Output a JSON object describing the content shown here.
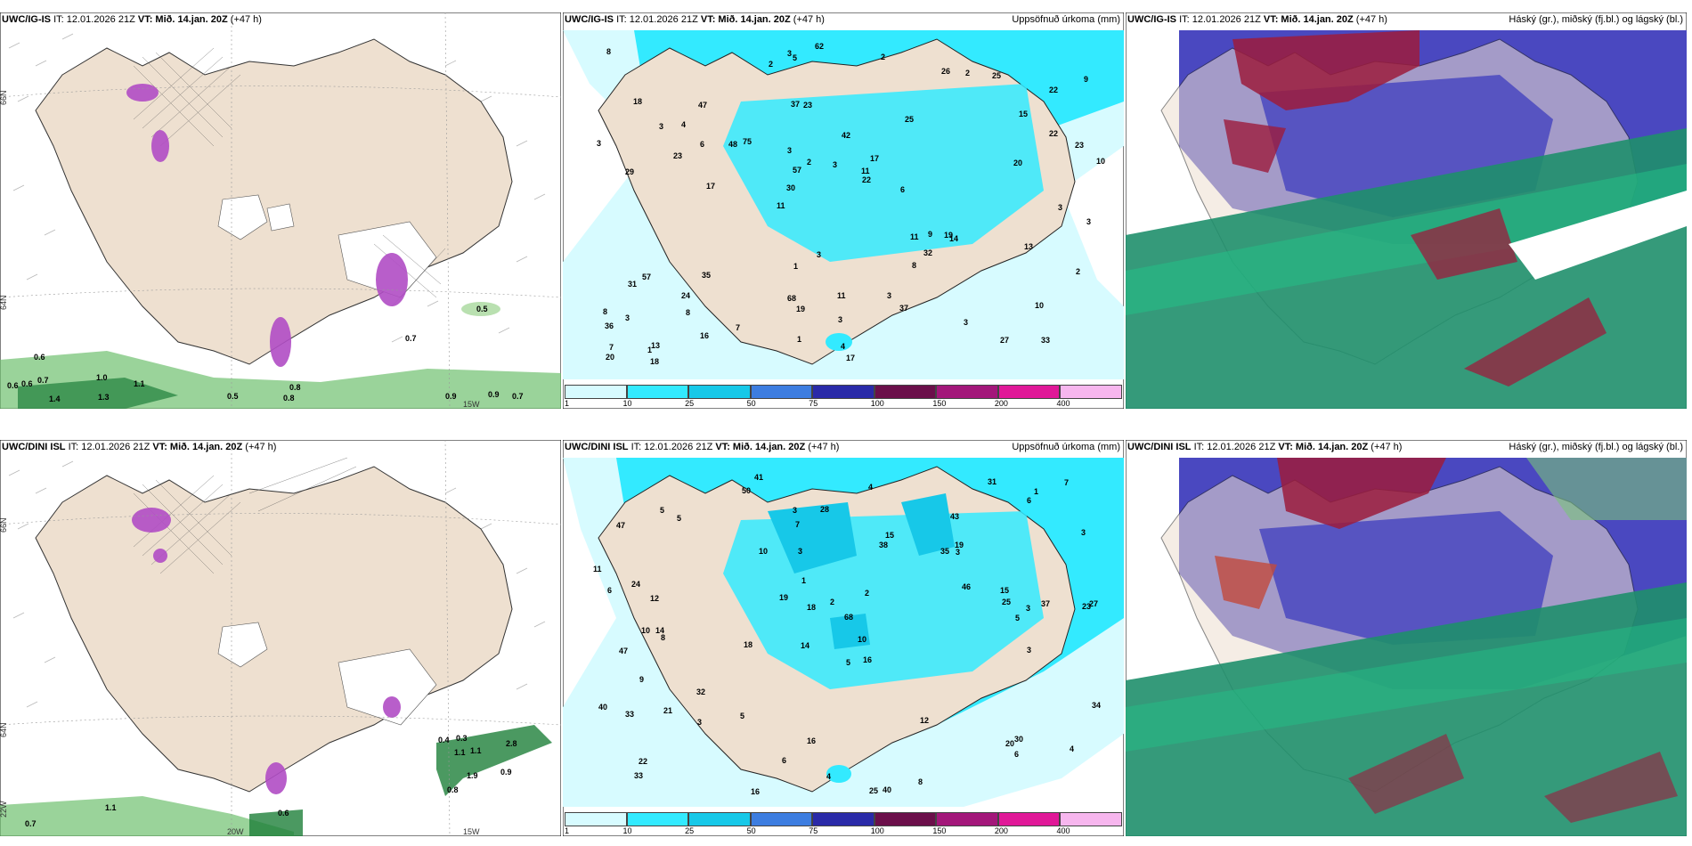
{
  "colors": {
    "land": "#eee0d0",
    "sea_precip_low": "#d7fbff",
    "precip_10": "#33eaff",
    "precip_25": "#17c8e8",
    "cloud_high": "#9c1c3c",
    "cloud_mid": "#4a48c0",
    "cloud_low": "#1f8f6c",
    "green_precip": "#6fc06f",
    "purple_precip": "#b04cc4"
  },
  "panels": {
    "top_left": {
      "model": "UWC/IG-IS",
      "it": "IT: 12.01.2026 21Z",
      "vt": "VT: Mið. 14.jan. 20Z",
      "lead": "(+47 h)",
      "values": [
        "0.6",
        "0.6",
        "0.6",
        "0.7",
        "1.0",
        "1.1",
        "1.4",
        "1.3",
        "0.5",
        "0.8",
        "0.8",
        "0.9",
        "0.9",
        "0.7",
        "0.7",
        "0.5"
      ],
      "axis": [
        "66N",
        "64N",
        "15W"
      ]
    },
    "top_mid": {
      "model": "UWC/IG-IS",
      "it": "IT: 12.01.2026 21Z",
      "vt": "VT: Mið. 14.jan. 20Z",
      "lead": "(+47 h)",
      "field": "Uppsöfnuð úrkoma (mm)",
      "values": [
        "33",
        "29",
        "22",
        "11",
        "25",
        "13",
        "37",
        "42",
        "57",
        "75",
        "36",
        "8",
        "23",
        "17",
        "14",
        "18",
        "5",
        "10",
        "11",
        "22",
        "30",
        "68",
        "57",
        "47",
        "26",
        "35",
        "27",
        "10",
        "19",
        "17",
        "48",
        "23",
        "8",
        "16",
        "23",
        "11",
        "7",
        "19",
        "22",
        "31",
        "15",
        "9",
        "32",
        "37",
        "24",
        "18",
        "20",
        "11",
        "25",
        "62",
        "17",
        "3",
        "4",
        "2",
        "1",
        "2",
        "2",
        "2",
        "2",
        "1",
        "7",
        "9",
        "6",
        "8",
        "8",
        "3",
        "3",
        "3",
        "3",
        "3",
        "3",
        "6",
        "13",
        "1",
        "20",
        "3",
        "3",
        "4",
        "3",
        "3",
        "3"
      ]
    },
    "top_right": {
      "model": "UWC/IG-IS",
      "it": "IT: 12.01.2026 21Z",
      "vt": "VT: Mið. 14.jan. 20Z",
      "lead": "(+47 h)",
      "field": "Háský (gr.), miðský (fj.bl.) og lágský (bl.)"
    },
    "bottom_left": {
      "model": "UWC/DINI ISL",
      "it": "IT: 12.01.2026 21Z",
      "vt": "VT: Mið. 14.jan. 20Z",
      "lead": "(+47 h)",
      "values": [
        "0.4",
        "0.3",
        "1.1",
        "1.1",
        "2.8",
        "1.9",
        "0.9",
        "0.8",
        "1.1",
        "0.7",
        "0.6"
      ],
      "axis": [
        "66N",
        "64N",
        "20W",
        "15W",
        "22W"
      ]
    },
    "bottom_mid": {
      "model": "UWC/DINI ISL",
      "it": "IT: 12.01.2026 21Z",
      "vt": "VT: Mið. 14.jan. 20Z",
      "lead": "(+47 h)",
      "field": "Uppsöfnuð úrkoma (mm)",
      "values": [
        "41",
        "43",
        "23",
        "14",
        "16",
        "14",
        "47",
        "35",
        "47",
        "38",
        "68",
        "33",
        "50",
        "18",
        "25",
        "40",
        "16",
        "31",
        "46",
        "32",
        "12",
        "10",
        "27",
        "37",
        "40",
        "24",
        "18",
        "25",
        "30",
        "33",
        "20",
        "15",
        "21",
        "19",
        "12",
        "34",
        "15",
        "6",
        "7",
        "28",
        "22",
        "16",
        "8",
        "5",
        "4",
        "3",
        "6",
        "19",
        "11",
        "10",
        "7",
        "5",
        "2",
        "6",
        "4",
        "3",
        "1",
        "2",
        "1",
        "3",
        "4",
        "3",
        "5",
        "5",
        "5",
        "6",
        "3",
        "8",
        "10",
        "3",
        "9",
        "3"
      ]
    },
    "bottom_right": {
      "model": "UWC/DINI ISL",
      "it": "IT: 12.01.2026 21Z",
      "vt": "VT: Mið. 14.jan. 20Z",
      "lead": "(+47 h)",
      "field": "Háský (gr.), miðský (fj.bl.) og lágský (bl.)"
    }
  },
  "legend": {
    "ticks": [
      "1",
      "10",
      "25",
      "50",
      "75",
      "100",
      "150",
      "200",
      "400"
    ],
    "colors": [
      "#d7fbff",
      "#33eaff",
      "#17c8e8",
      "#3d7de0",
      "#2a2aa8",
      "#6b0f4a",
      "#a3177a",
      "#e01898",
      "#f7b6ee"
    ]
  }
}
